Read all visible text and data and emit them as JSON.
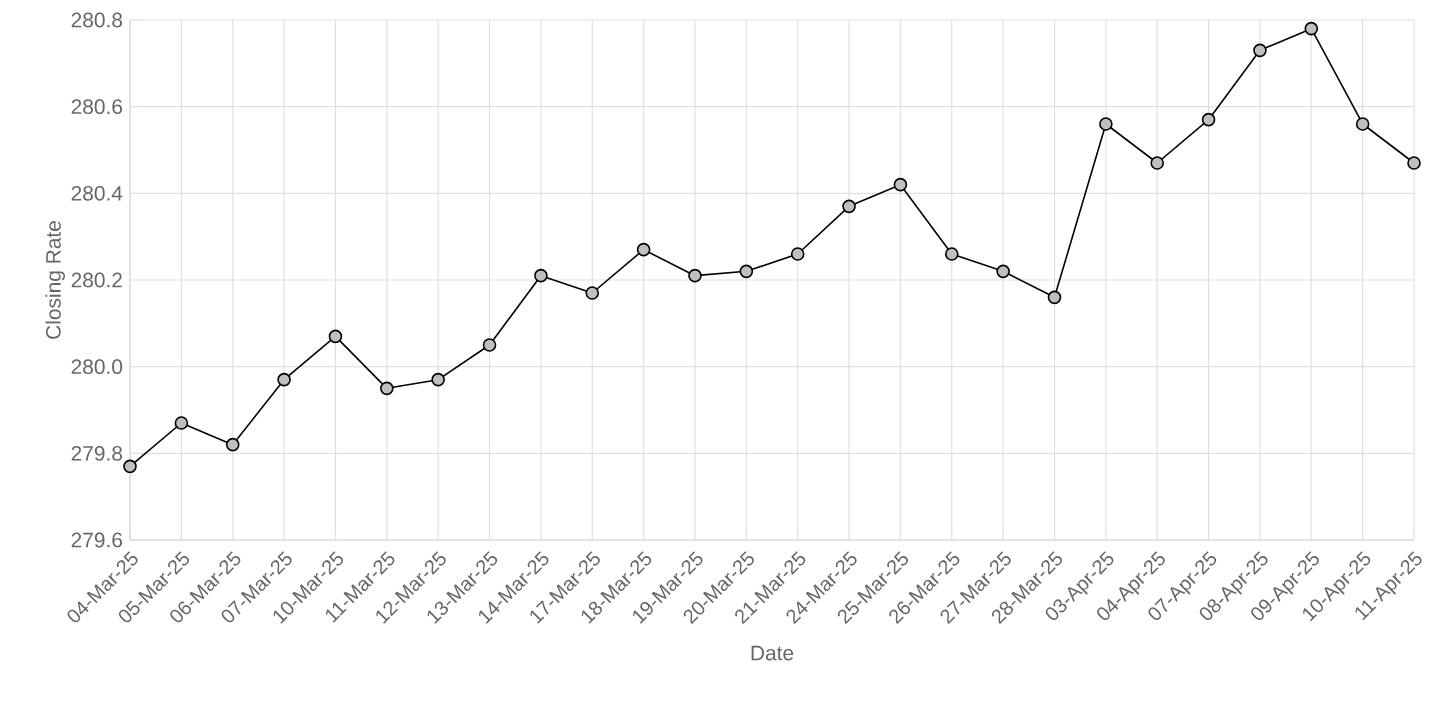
{
  "chart_data": {
    "type": "line",
    "xlabel": "Date",
    "ylabel": "Closing Rate",
    "categories": [
      "04-Mar-25",
      "05-Mar-25",
      "06-Mar-25",
      "07-Mar-25",
      "10-Mar-25",
      "11-Mar-25",
      "12-Mar-25",
      "13-Mar-25",
      "14-Mar-25",
      "17-Mar-25",
      "18-Mar-25",
      "19-Mar-25",
      "20-Mar-25",
      "21-Mar-25",
      "24-Mar-25",
      "25-Mar-25",
      "26-Mar-25",
      "27-Mar-25",
      "28-Mar-25",
      "03-Apr-25",
      "04-Apr-25",
      "07-Apr-25",
      "08-Apr-25",
      "09-Apr-25",
      "10-Apr-25",
      "11-Apr-25"
    ],
    "series": [
      {
        "color": "#000000",
        "values": [
          279.77,
          279.87,
          279.82,
          279.97,
          280.07,
          279.95,
          279.97,
          280.05,
          280.21,
          280.17,
          280.27,
          280.21,
          280.22,
          280.26,
          280.37,
          280.42,
          280.26,
          280.22,
          280.16,
          280.56,
          280.47,
          280.57,
          280.73,
          280.78,
          280.56,
          280.47
        ]
      }
    ],
    "ylim": [
      279.6,
      280.8
    ],
    "yticks": [
      {
        "value": 279.6,
        "label": "279.6"
      },
      {
        "value": 279.8,
        "label": "279.8"
      },
      {
        "value": 280.0,
        "label": "280.0"
      },
      {
        "value": 280.2,
        "label": "280.2"
      },
      {
        "value": 280.4,
        "label": "280.4"
      },
      {
        "value": 280.6,
        "label": "280.6"
      },
      {
        "value": 280.8,
        "label": "280.8"
      }
    ],
    "grid": true,
    "marker": "circle",
    "line_style": "solid"
  }
}
